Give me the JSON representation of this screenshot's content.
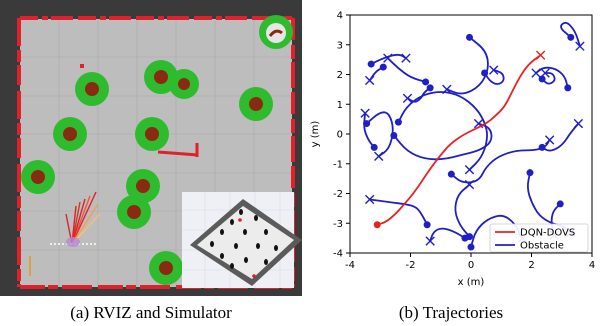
{
  "figure": {
    "caption_a": "(a) RVIZ and Simulator",
    "caption_b": "(b) Trajectories"
  },
  "rviz": {
    "background_color": "#3a3a3a",
    "floor_color": "#bdbdbd",
    "wall_color": "#e0202a",
    "obstacle_ring_color": "#2ebc2e",
    "obstacle_core_color": "#8b2a12"
  },
  "chart_data": {
    "type": "line",
    "title": "",
    "xlabel": "x (m)",
    "ylabel": "y (m)",
    "xlim": [
      -4,
      4
    ],
    "ylim": [
      -4,
      4
    ],
    "xticks": [
      -4,
      -2,
      0,
      2,
      4
    ],
    "yticks": [
      -4,
      -3,
      -2,
      -1,
      0,
      1,
      2,
      3,
      4
    ],
    "grid": false,
    "legend_position": "bottom-right",
    "legend": [
      {
        "name": "DQN-DOVS",
        "color": "#e8231f"
      },
      {
        "name": "Obstacle",
        "color": "#1f1fc8"
      }
    ],
    "series": [
      {
        "name": "DQN-DOVS",
        "color": "#e8231f",
        "start_marker": "dot",
        "end_marker": "x",
        "points": [
          [
            -3.1,
            -3.05
          ],
          [
            -2.8,
            -2.95
          ],
          [
            -2.5,
            -2.7
          ],
          [
            -2.2,
            -2.35
          ],
          [
            -1.9,
            -2.0
          ],
          [
            -1.6,
            -1.55
          ],
          [
            -1.3,
            -1.1
          ],
          [
            -1.0,
            -0.7
          ],
          [
            -0.7,
            -0.35
          ],
          [
            -0.3,
            -0.05
          ],
          [
            0.1,
            0.15
          ],
          [
            0.5,
            0.35
          ],
          [
            0.8,
            0.6
          ],
          [
            1.1,
            0.9
          ],
          [
            1.35,
            1.4
          ],
          [
            1.6,
            1.9
          ],
          [
            1.9,
            2.35
          ],
          [
            2.3,
            2.65
          ]
        ]
      },
      {
        "name": "Obstacle",
        "color": "#1f1fc8",
        "start_marker": "dot",
        "end_marker": "x",
        "points": [
          [
            -3.3,
            2.35
          ],
          [
            -2.9,
            2.55
          ],
          [
            -2.4,
            2.7
          ],
          [
            -2.15,
            2.55
          ]
        ]
      },
      {
        "name": "Obstacle",
        "color": "#1f1fc8",
        "start_marker": "dot",
        "end_marker": "x",
        "points": [
          [
            -2.9,
            2.25
          ],
          [
            -3.15,
            2.1
          ],
          [
            -3.35,
            1.8
          ]
        ]
      },
      {
        "name": "Obstacle",
        "color": "#1f1fc8",
        "start_marker": "dot",
        "end_marker": "x",
        "points": [
          [
            -1.5,
            1.75
          ],
          [
            -2.0,
            1.9
          ],
          [
            -2.4,
            2.2
          ],
          [
            -2.75,
            2.55
          ]
        ]
      },
      {
        "name": "Obstacle",
        "color": "#1f1fc8",
        "start_marker": "dot",
        "end_marker": "x",
        "points": [
          [
            -1.35,
            1.55
          ],
          [
            -1.55,
            1.4
          ],
          [
            -1.65,
            1.2
          ],
          [
            -1.85,
            1.05
          ],
          [
            -2.1,
            1.2
          ]
        ]
      },
      {
        "name": "Obstacle",
        "color": "#1f1fc8",
        "start_marker": "dot",
        "end_marker": "x",
        "points": [
          [
            -0.05,
            3.25
          ],
          [
            0.5,
            2.8
          ],
          [
            0.6,
            2.2
          ],
          [
            0.3,
            1.6
          ],
          [
            -0.3,
            1.3
          ],
          [
            -0.8,
            1.5
          ]
        ]
      },
      {
        "name": "Obstacle",
        "color": "#1f1fc8",
        "start_marker": "dot",
        "end_marker": "x",
        "points": [
          [
            0.45,
            2.05
          ],
          [
            0.65,
            1.75
          ],
          [
            0.9,
            1.65
          ],
          [
            1.1,
            1.8
          ],
          [
            1.05,
            2.05
          ],
          [
            0.75,
            2.15
          ]
        ]
      },
      {
        "name": "Obstacle",
        "color": "#1f1fc8",
        "start_marker": "dot",
        "end_marker": "x",
        "points": [
          [
            -2.4,
            0.4
          ],
          [
            -2.15,
            0.9
          ],
          [
            -1.65,
            1.3
          ],
          [
            -1.0,
            1.45
          ],
          [
            -0.35,
            1.3
          ],
          [
            0.2,
            0.85
          ],
          [
            0.5,
            0.3
          ],
          [
            0.55,
            -0.2
          ],
          [
            0.35,
            -0.8
          ],
          [
            -0.05,
            -1.2
          ]
        ]
      },
      {
        "name": "Obstacle",
        "color": "#1f1fc8",
        "start_marker": "dot",
        "end_marker": "x",
        "points": [
          [
            -3.45,
            0.35
          ],
          [
            -3.0,
            0.75
          ],
          [
            -2.7,
            0.7
          ],
          [
            -2.55,
            0.15
          ],
          [
            -2.7,
            -0.5
          ],
          [
            -3.05,
            -0.75
          ]
        ]
      },
      {
        "name": "Obstacle",
        "color": "#1f1fc8",
        "start_marker": "dot",
        "end_marker": "x",
        "points": [
          [
            -2.55,
            -0.05
          ],
          [
            -2.1,
            -0.6
          ],
          [
            -1.5,
            -0.85
          ],
          [
            -0.9,
            -0.85
          ],
          [
            -0.3,
            -0.7
          ],
          [
            0.3,
            -0.55
          ],
          [
            0.7,
            -0.25
          ],
          [
            0.65,
            0.2
          ],
          [
            0.25,
            0.35
          ]
        ]
      },
      {
        "name": "Obstacle",
        "color": "#1f1fc8",
        "start_marker": "dot",
        "end_marker": "x",
        "points": [
          [
            -0.65,
            -1.35
          ],
          [
            -0.3,
            -1.65
          ],
          [
            0.25,
            -1.6
          ],
          [
            0.5,
            -1.1
          ],
          [
            0.9,
            -0.75
          ],
          [
            1.5,
            -0.55
          ],
          [
            2.1,
            -0.55
          ],
          [
            2.45,
            -0.45
          ],
          [
            2.6,
            -0.2
          ]
        ]
      },
      {
        "name": "Obstacle",
        "color": "#1f1fc8",
        "start_marker": "dot",
        "end_marker": "x",
        "points": [
          [
            -1.45,
            -3.05
          ],
          [
            -1.6,
            -2.75
          ],
          [
            -1.8,
            -2.45
          ],
          [
            -2.2,
            -2.35
          ],
          [
            -2.65,
            -2.3
          ],
          [
            -3.35,
            -2.2
          ]
        ]
      },
      {
        "name": "Obstacle",
        "color": "#1f1fc8",
        "start_marker": "dot",
        "end_marker": "x",
        "points": [
          [
            -0.05,
            -3.45
          ],
          [
            -0.35,
            -3.1
          ],
          [
            -0.55,
            -2.6
          ],
          [
            -0.45,
            -2.05
          ],
          [
            -0.05,
            -1.7
          ]
        ]
      },
      {
        "name": "Obstacle",
        "color": "#1f1fc8",
        "start_marker": "dot",
        "end_marker": "x",
        "points": [
          [
            0.0,
            -3.8
          ],
          [
            0.15,
            -3.25
          ],
          [
            0.55,
            -2.85
          ],
          [
            1.05,
            -2.7
          ],
          [
            1.45,
            -3.0
          ],
          [
            1.7,
            -3.5
          ]
        ]
      },
      {
        "name": "Obstacle",
        "color": "#1f1fc8",
        "start_marker": "dot",
        "end_marker": "x",
        "points": [
          [
            -0.2,
            -3.5
          ],
          [
            -0.6,
            -3.25
          ],
          [
            -1.0,
            -3.15
          ],
          [
            -1.25,
            -3.3
          ],
          [
            -1.35,
            -3.6
          ]
        ]
      },
      {
        "name": "Obstacle",
        "color": "#1f1fc8",
        "start_marker": "dot",
        "end_marker": "x",
        "points": [
          [
            2.35,
            -0.45
          ],
          [
            2.6,
            -0.6
          ],
          [
            3.0,
            -0.4
          ],
          [
            3.3,
            0.05
          ],
          [
            3.55,
            0.35
          ]
        ]
      },
      {
        "name": "Obstacle",
        "color": "#1f1fc8",
        "start_marker": "dot",
        "end_marker": "x",
        "points": [
          [
            3.2,
            1.55
          ],
          [
            3.1,
            1.95
          ],
          [
            2.8,
            2.2
          ],
          [
            2.4,
            2.25
          ],
          [
            2.15,
            2.05
          ]
        ]
      },
      {
        "name": "Obstacle",
        "color": "#1f1fc8",
        "start_marker": "dot",
        "end_marker": "x",
        "points": [
          [
            3.3,
            3.25
          ],
          [
            2.9,
            3.6
          ],
          [
            3.15,
            3.8
          ],
          [
            3.45,
            3.45
          ],
          [
            3.6,
            2.95
          ]
        ]
      },
      {
        "name": "Obstacle",
        "color": "#1f1fc8",
        "start_marker": "dot",
        "end_marker": "x",
        "points": [
          [
            2.35,
            1.85
          ],
          [
            2.55,
            1.65
          ],
          [
            2.8,
            1.8
          ],
          [
            2.7,
            2.05
          ],
          [
            2.45,
            2.05
          ]
        ]
      },
      {
        "name": "Obstacle",
        "color": "#1f1fc8",
        "start_marker": "dot",
        "end_marker": "x",
        "points": [
          [
            1.95,
            -1.3
          ],
          [
            1.85,
            -1.8
          ],
          [
            2.0,
            -2.3
          ],
          [
            2.25,
            -2.75
          ],
          [
            2.65,
            -3.0
          ],
          [
            3.05,
            -3.1
          ],
          [
            3.3,
            -3.3
          ]
        ]
      },
      {
        "name": "Obstacle",
        "color": "#1f1fc8",
        "start_marker": "dot",
        "end_marker": "x",
        "points": [
          [
            2.95,
            -2.35
          ],
          [
            2.7,
            -2.6
          ],
          [
            2.65,
            -3.0
          ],
          [
            2.75,
            -3.4
          ]
        ]
      },
      {
        "name": "Obstacle",
        "color": "#1f1fc8",
        "start_marker": "dot",
        "end_marker": "x",
        "points": [
          [
            -3.2,
            -0.45
          ],
          [
            -3.4,
            -0.2
          ],
          [
            -3.55,
            0.2
          ],
          [
            -3.5,
            0.7
          ]
        ]
      }
    ]
  }
}
